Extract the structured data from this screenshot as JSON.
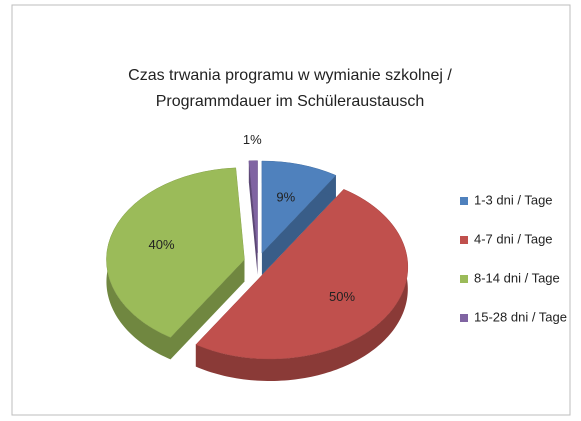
{
  "chart_data": {
    "type": "pie3d",
    "title": [
      "Czas trwania programu w wymianie szkolnej /",
      "Programmdauer im Schüleraustausch"
    ],
    "categories": [
      "1-3 dni / Tage",
      "4-7 dni / Tage",
      "8-14 dni / Tage",
      "15-28 dni / Tage"
    ],
    "values": [
      9,
      50,
      40,
      1
    ],
    "value_labels": [
      "9%",
      "50%",
      "40%",
      "1%"
    ],
    "colors": [
      "#4f81bd",
      "#c0504d",
      "#9bbb59",
      "#8064a2"
    ],
    "legend": "right"
  }
}
